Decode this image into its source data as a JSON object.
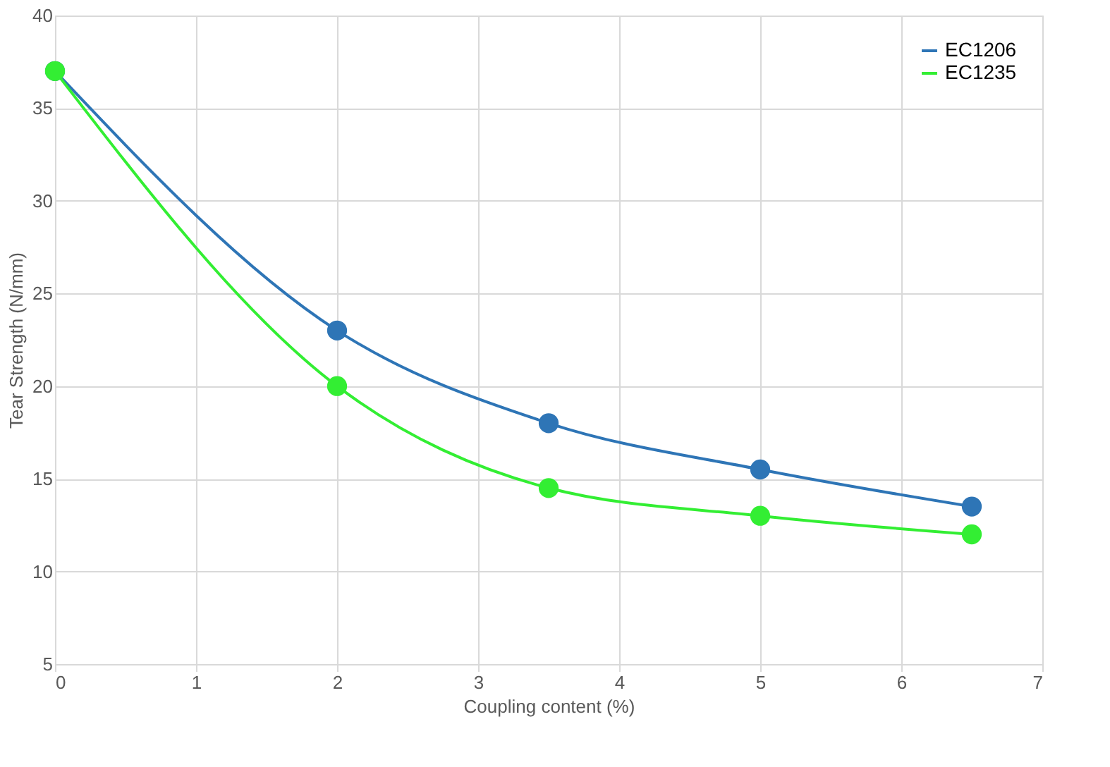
{
  "chart_data": {
    "type": "line",
    "xlabel": "Coupling content (%)",
    "ylabel": "Tear Strength (N/mm)",
    "x": [
      0,
      2,
      3.5,
      5,
      6.5
    ],
    "series": [
      {
        "name": "EC1206",
        "color": "#2e75b6",
        "values": [
          37,
          23,
          18,
          15.5,
          13.5
        ]
      },
      {
        "name": "EC1235",
        "color": "#33ee33",
        "values": [
          37,
          20,
          14.5,
          13,
          12
        ]
      }
    ],
    "xlim": [
      0,
      7
    ],
    "xticks": [
      0,
      1,
      2,
      3,
      4,
      5,
      6,
      7
    ],
    "ylim": [
      5,
      40
    ],
    "yticks": [
      5,
      10,
      15,
      20,
      25,
      30,
      35,
      40
    ],
    "grid": true,
    "legend": "top right",
    "marker": "circle",
    "line_style": "solid"
  }
}
